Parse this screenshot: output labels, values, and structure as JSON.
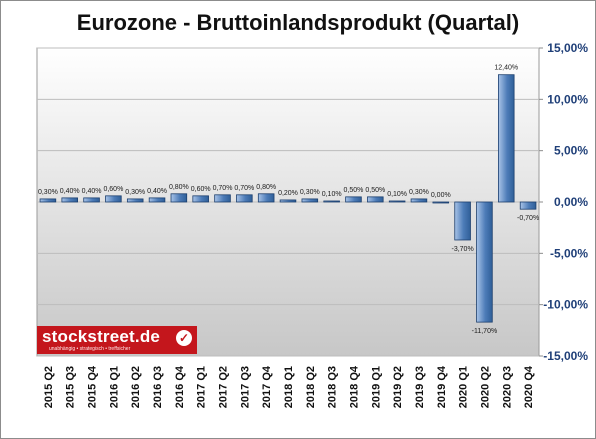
{
  "chart_data": {
    "type": "bar",
    "title": "Eurozone - Bruttoinlandsprodukt (Quartal)",
    "xlabel": "",
    "ylabel": "",
    "categories": [
      "2015 Q2",
      "2015 Q3",
      "2015 Q4",
      "2016 Q1",
      "2016 Q2",
      "2016 Q3",
      "2016 Q4",
      "2017 Q1",
      "2017 Q2",
      "2017 Q3",
      "2017 Q4",
      "2018 Q1",
      "2018 Q2",
      "2018 Q3",
      "2018 Q4",
      "2019 Q1",
      "2019 Q2",
      "2019 Q3",
      "2019 Q4",
      "2020 Q1",
      "2020 Q2",
      "2020 Q3",
      "2020 Q4"
    ],
    "values": [
      0.3,
      0.4,
      0.4,
      0.6,
      0.3,
      0.4,
      0.8,
      0.6,
      0.7,
      0.7,
      0.8,
      0.2,
      0.3,
      0.1,
      0.5,
      0.5,
      0.1,
      0.3,
      0.0,
      -3.7,
      -11.7,
      12.4,
      -0.7
    ],
    "data_labels": [
      "0,30%",
      "0,40%",
      "0,40%",
      "0,60%",
      "0,30%",
      "0,40%",
      "0,80%",
      "0,60%",
      "0,70%",
      "0,70%",
      "0,80%",
      "0,20%",
      "0,30%",
      "0,10%",
      "0,50%",
      "0,50%",
      "0,10%",
      "0,30%",
      "0,00%",
      "-3,70%",
      "-11,70%",
      "12,40%",
      "-0,70%"
    ],
    "y_ticks": [
      15,
      10,
      5,
      0,
      -5,
      -10,
      -15
    ],
    "y_tick_labels": [
      "15,00%",
      "10,00%",
      "5,00%",
      "0,00%",
      "-5,00%",
      "-10,00%",
      "-15,00%"
    ],
    "ylim": [
      -15,
      15
    ],
    "y_axis_side": "right",
    "grid": true,
    "legend": "none",
    "colors": {
      "bar": "#2f5f98",
      "bar_light": "#a9c4e8",
      "axis_labels": "#1f3f78",
      "plot_top": "#ffffff",
      "plot_bottom": "#c7c7c7"
    }
  },
  "logo": {
    "text": "stockstreet.de",
    "tagline": "unabhängig • strategisch • treffsicher",
    "mark": "check-badge-icon"
  }
}
